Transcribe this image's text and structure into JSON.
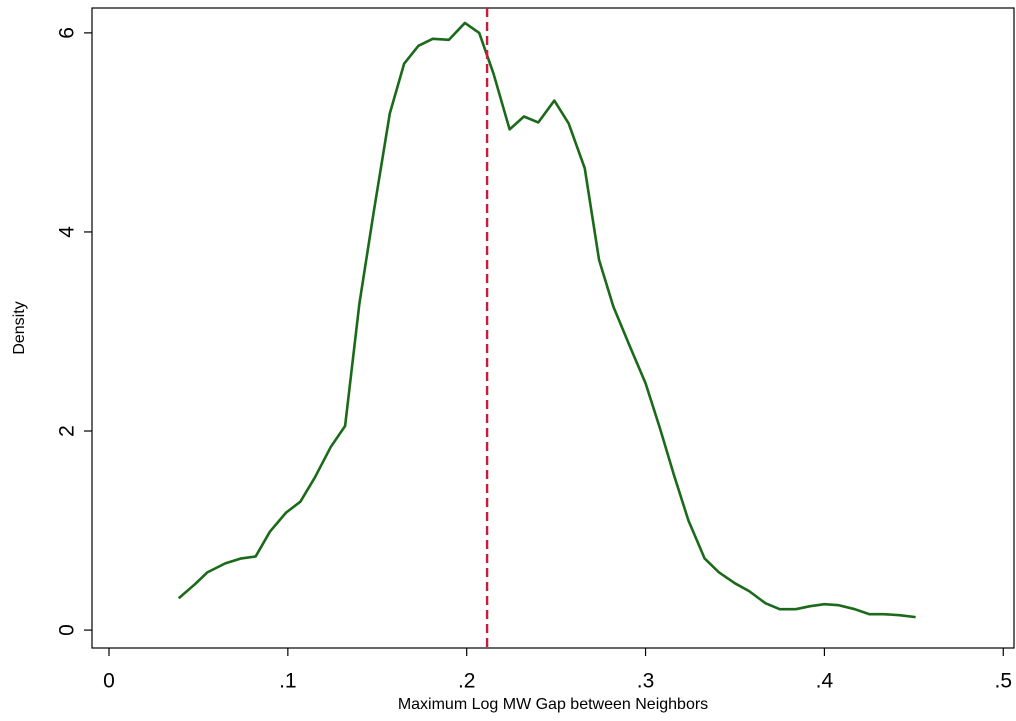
{
  "chart_data": {
    "type": "line",
    "x_label": "Maximum Log MW Gap between Neighbors",
    "y_label": "Density",
    "x": [
      0.039,
      0.048,
      0.055,
      0.065,
      0.074,
      0.082,
      0.09,
      0.099,
      0.107,
      0.115,
      0.124,
      0.132,
      0.14,
      0.148,
      0.157,
      0.165,
      0.173,
      0.181,
      0.19,
      0.199,
      0.207,
      0.215,
      0.224,
      0.232,
      0.24,
      0.249,
      0.257,
      0.266,
      0.274,
      0.282,
      0.291,
      0.3,
      0.308,
      0.316,
      0.324,
      0.333,
      0.341,
      0.35,
      0.358,
      0.367,
      0.375,
      0.384,
      0.392,
      0.4,
      0.408,
      0.417,
      0.425,
      0.433,
      0.442,
      0.451
    ],
    "values": [
      0.32,
      0.46,
      0.58,
      0.67,
      0.72,
      0.74,
      0.99,
      1.18,
      1.29,
      1.53,
      1.84,
      2.05,
      3.28,
      4.2,
      5.19,
      5.69,
      5.87,
      5.94,
      5.93,
      6.1,
      6.0,
      5.59,
      5.03,
      5.16,
      5.1,
      5.32,
      5.09,
      4.64,
      3.72,
      3.25,
      2.86,
      2.48,
      2.03,
      1.55,
      1.1,
      0.72,
      0.58,
      0.47,
      0.39,
      0.27,
      0.21,
      0.21,
      0.24,
      0.26,
      0.25,
      0.21,
      0.16,
      0.16,
      0.15,
      0.13
    ],
    "color": "#1a6a1a",
    "xline": 0.2114,
    "xline_color": "#c41e3a",
    "xlim": [
      -0.0095,
      0.506
    ],
    "ylim": [
      -0.18,
      6.25
    ],
    "xticks": [
      0,
      {
        "value": 0.1,
        "label": ".1"
      },
      {
        "value": 0.2,
        "label": ".2"
      },
      {
        "value": 0.3,
        "label": ".3"
      },
      {
        "value": 0.4,
        "label": ".4"
      },
      {
        "value": 0.5,
        "label": ".5"
      }
    ],
    "yticks": [
      0,
      2,
      4,
      6
    ],
    "grid": false
  }
}
